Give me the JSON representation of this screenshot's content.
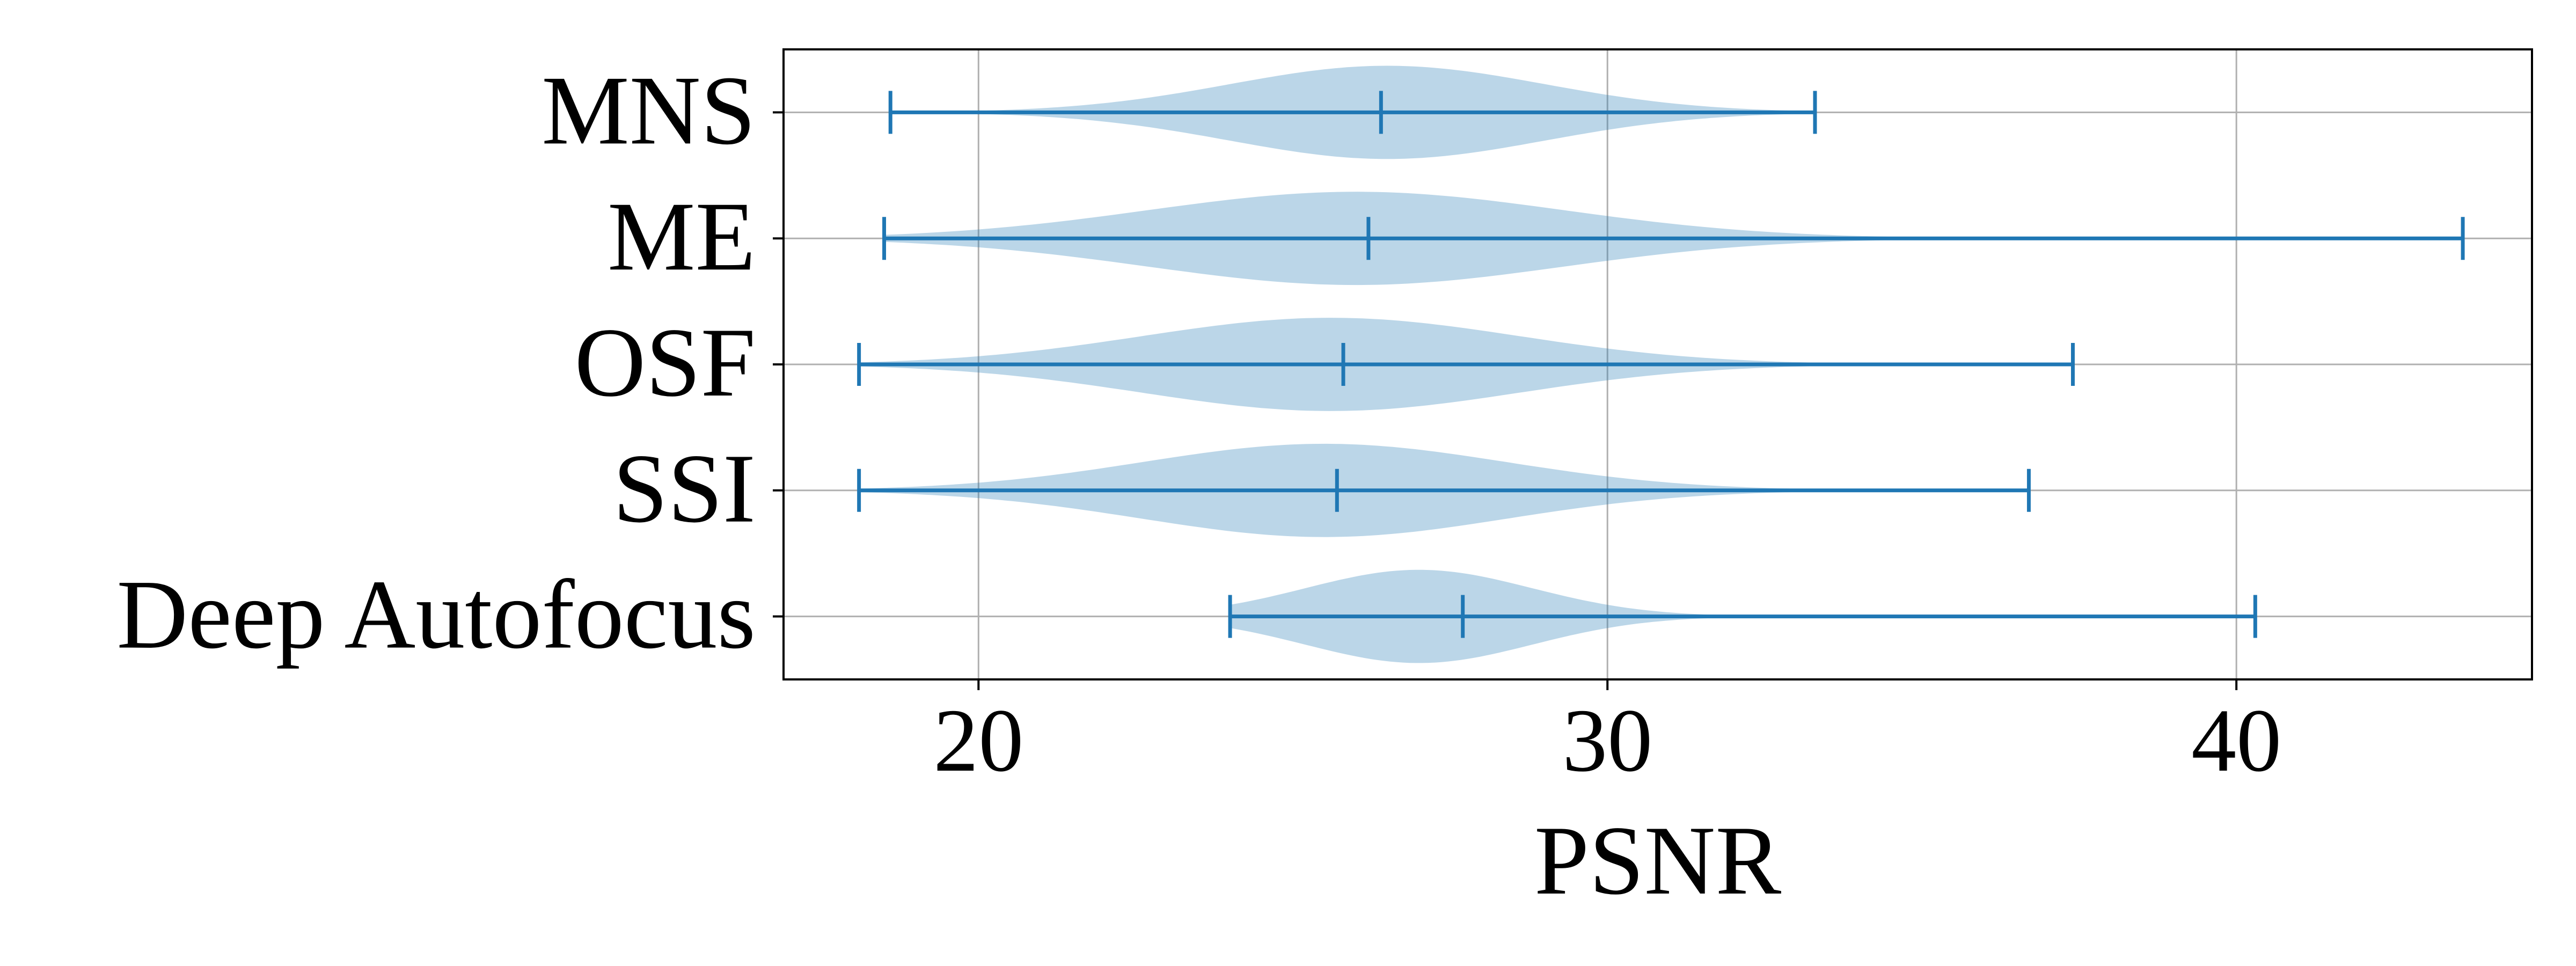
{
  "chart_data": {
    "type": "violin",
    "orientation": "horizontal",
    "title": "",
    "xlabel": "PSNR",
    "ylabel": "",
    "xlim": [
      16.9,
      44.7
    ],
    "xticks": [
      20,
      30,
      40
    ],
    "grid": true,
    "colors": {
      "line": "#1f77b4",
      "body": "#1f77b4",
      "grid": "#b0b0b0",
      "axis": "#000000"
    },
    "categories": [
      "MNS",
      "ME",
      "OSF",
      "SSI",
      "Deep Autofocus"
    ],
    "series": [
      {
        "label": "MNS",
        "min": 18.6,
        "median": 26.4,
        "max": 33.3,
        "peak": 26.5,
        "spread": 2.5,
        "max_half_width": 0.37
      },
      {
        "label": "ME",
        "min": 18.5,
        "median": 26.2,
        "max": 43.6,
        "peak": 26.0,
        "spread": 3.3,
        "max_half_width": 0.37
      },
      {
        "label": "OSF",
        "min": 18.1,
        "median": 25.8,
        "max": 37.4,
        "peak": 25.6,
        "spread": 3.0,
        "max_half_width": 0.37
      },
      {
        "label": "SSI",
        "min": 18.1,
        "median": 25.7,
        "max": 36.7,
        "peak": 25.5,
        "spread": 2.9,
        "max_half_width": 0.37
      },
      {
        "label": "Deep Autofocus",
        "min": 24.0,
        "median": 27.7,
        "max": 40.3,
        "peak": 27.0,
        "spread": 1.8,
        "max_half_width": 0.37
      }
    ]
  }
}
